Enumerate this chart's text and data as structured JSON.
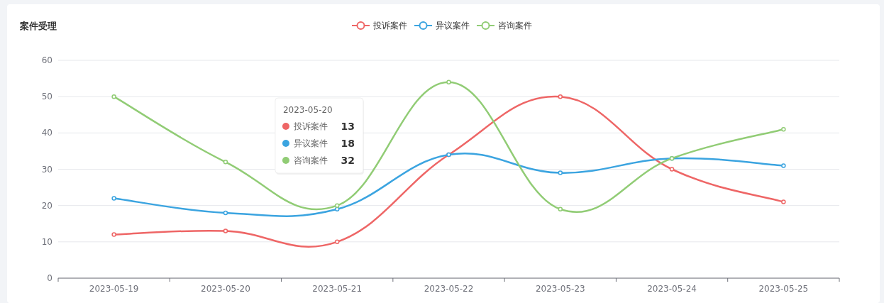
{
  "chart_data": {
    "type": "line",
    "title": "案件受理",
    "categories": [
      "2023-05-19",
      "2023-05-20",
      "2023-05-21",
      "2023-05-22",
      "2023-05-23",
      "2023-05-24",
      "2023-05-25"
    ],
    "series": [
      {
        "name": "投诉案件",
        "color": "#ee6666",
        "values": [
          12,
          13,
          10,
          34,
          50,
          30,
          21
        ]
      },
      {
        "name": "异议案件",
        "color": "#3ba4e0",
        "values": [
          22,
          18,
          19,
          34,
          29,
          33,
          31
        ]
      },
      {
        "name": "咨询案件",
        "color": "#91cc75",
        "values": [
          50,
          32,
          20,
          54,
          19,
          33,
          41
        ]
      }
    ],
    "ylim": [
      0,
      60
    ],
    "yticks": [
      0,
      10,
      20,
      30,
      40,
      50,
      60
    ],
    "grid": "y",
    "legend": "top",
    "marker": "circle",
    "line_style": "solid",
    "annotations": [
      "2023-05-20",
      "13",
      "18",
      "32"
    ]
  }
}
